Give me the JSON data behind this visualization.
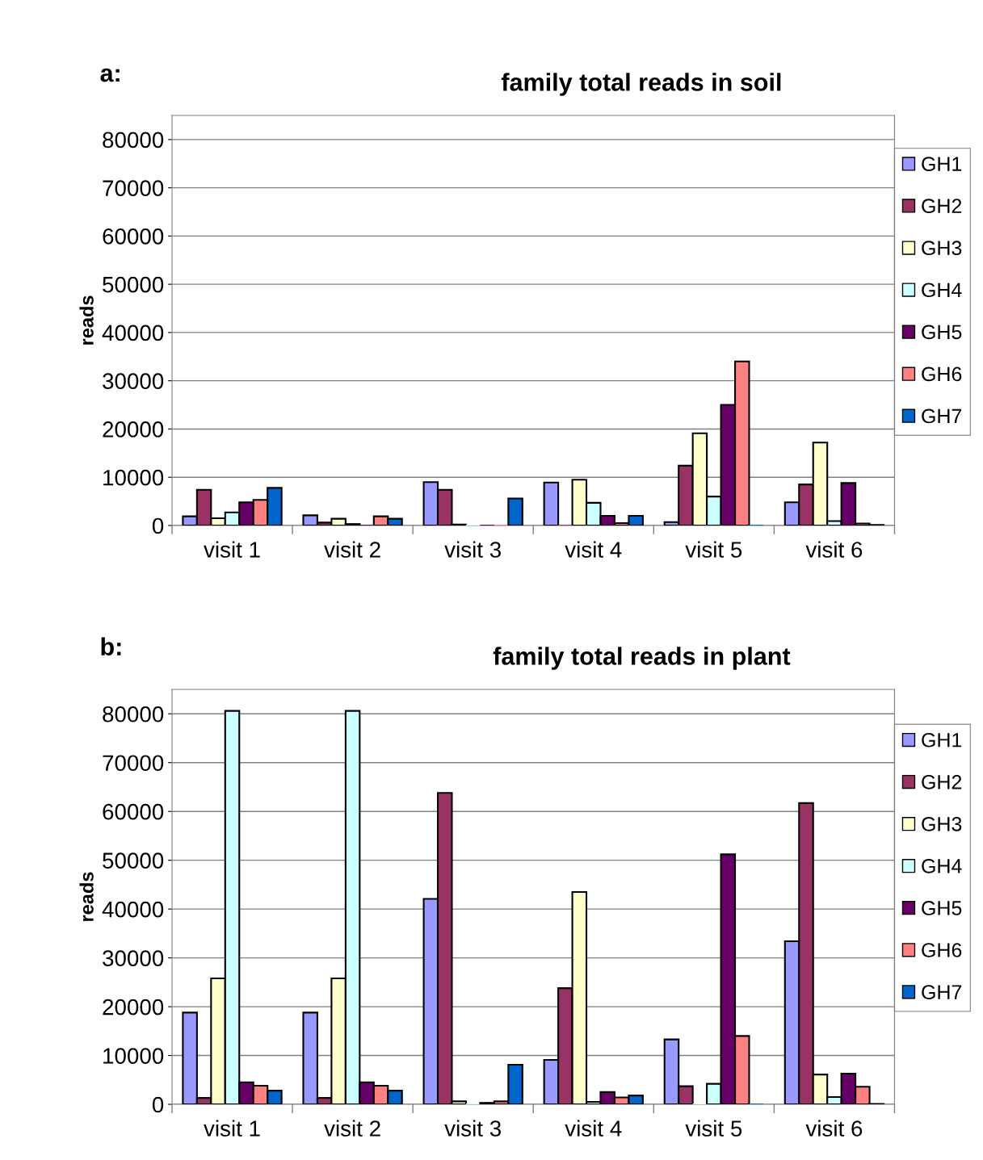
{
  "chart_data": [
    {
      "type": "bar",
      "title": "family total reads in soil",
      "annotations": [
        "a:"
      ],
      "ylabel": "reads",
      "categories": [
        "visit 1",
        "visit 2",
        "visit 3",
        "visit 4",
        "visit 5",
        "visit 6"
      ],
      "ylim": [
        0,
        85000
      ],
      "yticks": [
        0,
        10000,
        20000,
        30000,
        40000,
        50000,
        60000,
        70000,
        80000
      ],
      "grid": "y",
      "legend": "right",
      "series": [
        {
          "name": "GH1",
          "color": "#9999ff",
          "values": [
            1900,
            2100,
            9000,
            8900,
            700,
            4800
          ]
        },
        {
          "name": "GH2",
          "color": "#993366",
          "values": [
            7400,
            600,
            7400,
            0,
            12400,
            8500
          ]
        },
        {
          "name": "GH3",
          "color": "#ffffcc",
          "values": [
            1500,
            1400,
            200,
            9500,
            19100,
            17200
          ]
        },
        {
          "name": "GH4",
          "color": "#ccffff",
          "values": [
            2700,
            300,
            0,
            4700,
            6000,
            900
          ]
        },
        {
          "name": "GH5",
          "color": "#660066",
          "values": [
            4800,
            0,
            0,
            2000,
            25000,
            8800
          ]
        },
        {
          "name": "GH6",
          "color": "#ff8080",
          "values": [
            5300,
            1900,
            0,
            500,
            34000,
            400
          ]
        },
        {
          "name": "GH7",
          "color": "#0066cc",
          "values": [
            7800,
            1400,
            5600,
            2000,
            0,
            100
          ]
        }
      ]
    },
    {
      "type": "bar",
      "title": "family total reads in plant",
      "annotations": [
        "b:"
      ],
      "ylabel": "reads",
      "categories": [
        "visit 1",
        "visit 2",
        "visit 3",
        "visit 4",
        "visit 5",
        "visit 6"
      ],
      "ylim": [
        0,
        85000
      ],
      "yticks": [
        0,
        10000,
        20000,
        30000,
        40000,
        50000,
        60000,
        70000,
        80000
      ],
      "grid": "y",
      "legend": "right",
      "series": [
        {
          "name": "GH1",
          "color": "#9999ff",
          "values": [
            18800,
            18800,
            42100,
            9100,
            13300,
            33400
          ]
        },
        {
          "name": "GH2",
          "color": "#993366",
          "values": [
            1300,
            1300,
            63800,
            23800,
            3700,
            61700
          ]
        },
        {
          "name": "GH3",
          "color": "#ffffcc",
          "values": [
            25800,
            25800,
            600,
            43500,
            0,
            6100
          ]
        },
        {
          "name": "GH4",
          "color": "#ccffff",
          "values": [
            80600,
            80600,
            0,
            500,
            4200,
            1500
          ]
        },
        {
          "name": "GH5",
          "color": "#660066",
          "values": [
            4500,
            4500,
            300,
            2500,
            51200,
            6300
          ]
        },
        {
          "name": "GH6",
          "color": "#ff8080",
          "values": [
            3800,
            3800,
            600,
            1400,
            14000,
            3600
          ]
        },
        {
          "name": "GH7",
          "color": "#0066cc",
          "values": [
            2800,
            2800,
            8100,
            1800,
            0,
            100
          ]
        }
      ]
    }
  ]
}
